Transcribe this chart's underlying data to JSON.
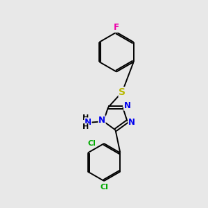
{
  "background_color": "#e8e8e8",
  "bond_color": "#000000",
  "atom_colors": {
    "F": "#ee00aa",
    "S": "#b8b800",
    "N": "#0000ee",
    "Cl": "#00aa00",
    "H": "#000000",
    "C": "#000000"
  },
  "font_size": 8.5,
  "line_width": 1.4,
  "xlim": [
    0,
    10
  ],
  "ylim": [
    0,
    10
  ]
}
